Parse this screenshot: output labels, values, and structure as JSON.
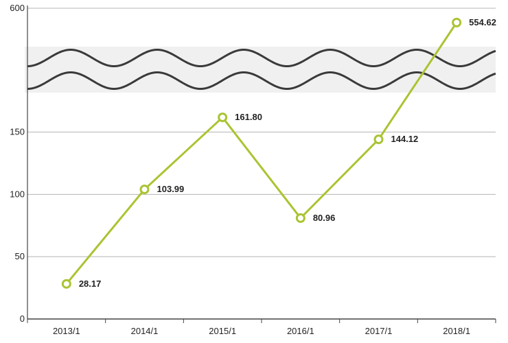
{
  "chart_data": {
    "type": "line",
    "title": "",
    "xlabel": "",
    "ylabel": "",
    "categories": [
      "2013/1",
      "2014/1",
      "2015/1",
      "2016/1",
      "2017/1",
      "2018/1"
    ],
    "series": [
      {
        "values": [
          28.17,
          103.99,
          161.8,
          80.96,
          144.12,
          554.62
        ]
      }
    ],
    "data_labels": [
      "28.17",
      "103.99",
      "161.80",
      "80.96",
      "144.12",
      "554.62"
    ],
    "y_ticks": [
      "0",
      "50",
      "100",
      "150",
      "600"
    ],
    "y_tick_values": [
      0,
      50,
      100,
      150,
      600
    ],
    "ylim_lower": [
      0,
      180
    ],
    "ylim_upper": [
      550,
      600
    ],
    "axis_break": true,
    "grid": true,
    "colors": {
      "line": "#a9c431",
      "grid": "#b5b5b5",
      "axis": "#444444",
      "break_band": "#f0f0f0",
      "break_wave": "#3a3a3a"
    }
  }
}
